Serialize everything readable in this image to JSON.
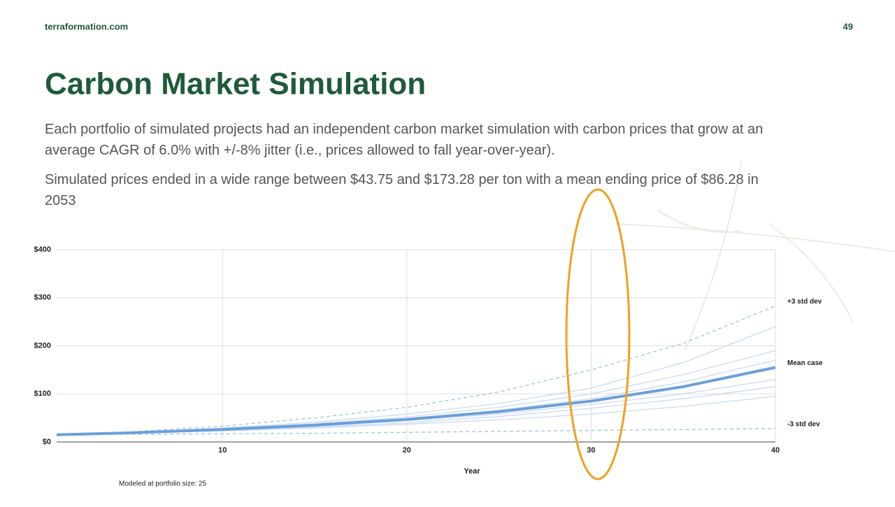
{
  "header": {
    "site": "terraformation.com",
    "page_number": "49",
    "title": "Carbon Market Simulation",
    "paragraphs": [
      "Each portfolio of simulated projects had an independent carbon market simulation with carbon prices that grow at an average CAGR of 6.0% with +/-8% jitter (i.e., prices allowed to fall year-over-year).",
      "Simulated prices ended in a wide range between $43.75 and $173.28 per ton with a mean ending price of $86.28 in 2053"
    ]
  },
  "chart_data": {
    "type": "line",
    "x_label": "Year",
    "note": "Modeled at portfolio size: 25",
    "x": [
      1,
      5,
      10,
      15,
      20,
      25,
      30,
      35,
      40
    ],
    "xlim": [
      1,
      40
    ],
    "xticks": [
      10,
      20,
      30,
      40
    ],
    "ylim": [
      0,
      400
    ],
    "yticks": [
      {
        "value": 0,
        "label": "$0"
      },
      {
        "value": 100,
        "label": "$100"
      },
      {
        "value": 200,
        "label": "$200"
      },
      {
        "value": 300,
        "label": "$300"
      },
      {
        "value": 400,
        "label": "$400"
      }
    ],
    "grid": true,
    "series": [
      {
        "color": "#c9d9f5",
        "values": [
          15,
          19,
          27,
          38,
          52,
          72,
          100,
          140,
          190
        ]
      },
      {
        "color": "#c9d9f5",
        "values": [
          15,
          18,
          24,
          31,
          40,
          53,
          70,
          90,
          115
        ]
      },
      {
        "color": "#c9d9f5",
        "values": [
          15,
          20,
          29,
          41,
          58,
          80,
          112,
          165,
          240
        ]
      },
      {
        "color": "#c9d9f5",
        "values": [
          15,
          18,
          23,
          29,
          37,
          46,
          58,
          74,
          95
        ]
      },
      {
        "color": "#c9d9f5",
        "values": [
          15,
          19,
          26,
          36,
          48,
          66,
          90,
          125,
          170
        ]
      },
      {
        "color": "#c9d9f5",
        "values": [
          15,
          19,
          25,
          33,
          44,
          58,
          78,
          100,
          130
        ]
      },
      {
        "name": "+3 std dev",
        "color": "#9ec3e0",
        "dashed": true,
        "values": [
          15,
          21,
          33,
          50,
          72,
          104,
          150,
          205,
          283
        ]
      },
      {
        "name": "-3 std dev",
        "color": "#9ec3e0",
        "dashed": true,
        "values": [
          15,
          16,
          17,
          18,
          20,
          22,
          24,
          26,
          28
        ]
      },
      {
        "name": "Mean case",
        "color": "#6a9fd8",
        "width": 4,
        "values": [
          15,
          19,
          26,
          35,
          47,
          63,
          85,
          115,
          155
        ]
      }
    ]
  }
}
